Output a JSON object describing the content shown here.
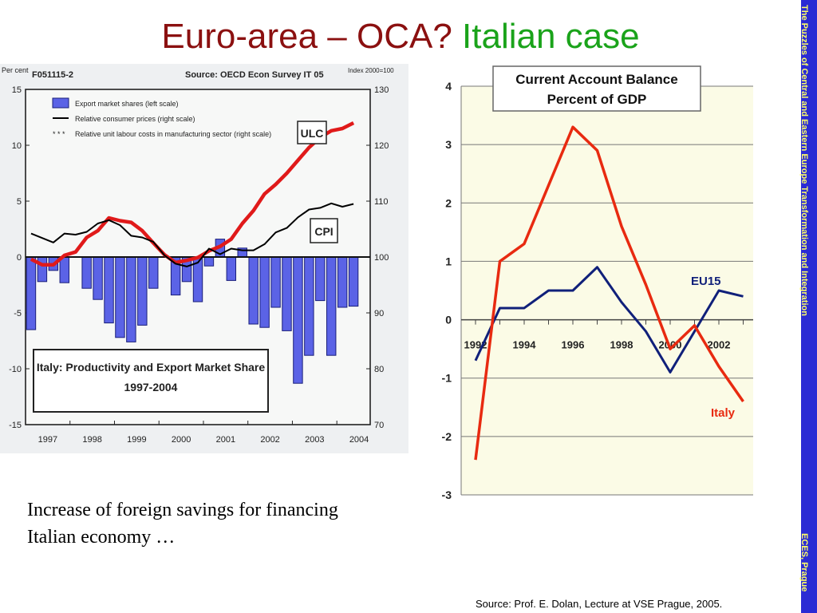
{
  "slide": {
    "title_part1": "Euro-area – OCA?",
    "title_part2": "Italian case",
    "caption": "Increase of foreign savings for financing Italian economy …",
    "source_note": "Source: Prof. E. Dolan, Lecture at VSE Prague, 2005.",
    "side_band_top": "The Puzzles of Central and Eastern Europe Transformation and Integration",
    "side_band_bottom": "ECES, Prague",
    "colors": {
      "title_red": "#8b1010",
      "title_green": "#1aa31a",
      "band_blue": "#2b2bd4",
      "band_text": "#ffff66"
    }
  },
  "chart_data": [
    {
      "type": "bar",
      "code": "F051115-2",
      "source": "Source: OECD Econ Survey IT 05",
      "left_unit": "Per cent",
      "right_unit": "Index 2000=100",
      "years": [
        "1997",
        "1998",
        "1999",
        "2000",
        "2001",
        "2002",
        "2003",
        "2004"
      ],
      "ylim_left": [
        -15,
        15
      ],
      "ylim_right": [
        70,
        130
      ],
      "left_ticks": [
        "15",
        "10",
        "5",
        "0",
        "-5",
        "-10",
        "-15"
      ],
      "right_ticks": [
        "130",
        "120",
        "110",
        "100",
        "90",
        "80",
        "70"
      ],
      "legend": [
        "Export market shares (left scale)",
        "Relative consumer prices (right scale)",
        "Relative unit labour costs in manufacturing sector  (right scale)"
      ],
      "labels": {
        "ulc": "ULC",
        "cpi": "CPI"
      },
      "box_title_line1": "Italy: Productivity and Export Market Share",
      "box_title_line2": "1997-2004",
      "series": [
        {
          "name": "Export market shares (left scale)",
          "kind": "bar",
          "axis": "left",
          "x": [
            1997.0,
            1997.25,
            1997.5,
            1997.75,
            1998.0,
            1998.25,
            1998.5,
            1998.75,
            1999.0,
            1999.25,
            1999.5,
            1999.75,
            2000.0,
            2000.25,
            2000.5,
            2000.75,
            2001.0,
            2001.25,
            2001.5,
            2001.75,
            2002.0,
            2002.25,
            2002.5,
            2002.75,
            2003.0,
            2003.25,
            2003.5,
            2003.75,
            2004.0,
            2004.25
          ],
          "values": [
            -6.5,
            -2.2,
            -1.2,
            -2.3,
            0.0,
            -2.8,
            -3.8,
            -5.9,
            -7.2,
            -7.6,
            -6.1,
            -2.8,
            0.0,
            -3.4,
            -2.2,
            -4.0,
            -0.8,
            1.6,
            -2.1,
            0.8,
            -6.0,
            -6.3,
            -4.5,
            -6.6,
            -11.3,
            -8.8,
            -3.9,
            -8.8,
            -4.5,
            -4.4
          ],
          "color": "#5b63e6"
        },
        {
          "name": "Relative consumer prices (right scale)",
          "kind": "line",
          "axis": "right",
          "x": [
            1997.0,
            1997.25,
            1997.5,
            1997.75,
            1998.0,
            1998.25,
            1998.5,
            1998.75,
            1999.0,
            1999.25,
            1999.5,
            1999.75,
            2000.0,
            2000.25,
            2000.5,
            2000.75,
            2001.0,
            2001.25,
            2001.5,
            2001.75,
            2002.0,
            2002.25,
            2002.5,
            2002.75,
            2003.0,
            2003.25,
            2003.5,
            2003.75,
            2004.0,
            2004.25
          ],
          "values": [
            104.2,
            103.4,
            102.6,
            104.2,
            104.0,
            104.5,
            106.0,
            106.6,
            105.7,
            103.8,
            103.5,
            102.7,
            100.3,
            98.8,
            98.3,
            99.0,
            101.5,
            100.5,
            101.5,
            101.2,
            101.2,
            102.3,
            104.4,
            105.2,
            107.1,
            108.5,
            108.8,
            109.6,
            109.0,
            109.5
          ],
          "color": "#000000"
        },
        {
          "name": "Relative unit labour costs in manufacturing sector  (right scale)",
          "kind": "line",
          "axis": "right",
          "x": [
            1997.0,
            1997.25,
            1997.5,
            1997.75,
            1998.0,
            1998.25,
            1998.5,
            1998.75,
            1999.0,
            1999.25,
            1999.5,
            1999.75,
            2000.0,
            2000.25,
            2000.5,
            2000.75,
            2001.0,
            2001.25,
            2001.5,
            2001.75,
            2002.0,
            2002.25,
            2002.5,
            2002.75,
            2003.0,
            2003.25,
            2003.5,
            2003.75,
            2004.0,
            2004.25
          ],
          "values": [
            99.6,
            98.6,
            98.6,
            100.3,
            100.9,
            103.5,
            104.7,
            107.0,
            106.5,
            106.2,
            104.7,
            102.5,
            100.4,
            99.0,
            99.4,
            99.9,
            101.1,
            101.9,
            103.2,
            106.0,
            108.3,
            111.3,
            113.0,
            115.0,
            117.3,
            119.6,
            121.4,
            122.6,
            123.0,
            124.0
          ],
          "color": "#e01a1a"
        }
      ]
    },
    {
      "type": "line",
      "title_line1": "Current Account Balance",
      "title_line2": "Percent of GDP",
      "x": [
        1992,
        1993,
        1994,
        1995,
        1996,
        1997,
        1998,
        1999,
        2000,
        2001,
        2002,
        2003
      ],
      "x_tick_labels": [
        "1992",
        "1994",
        "1996",
        "1998",
        "2000",
        "2002"
      ],
      "y_ticks": [
        "4",
        "3",
        "2",
        "1",
        "0",
        "-1",
        "-2",
        "-3"
      ],
      "ylim": [
        -3,
        4
      ],
      "series": [
        {
          "name": "EU15",
          "values": [
            -0.7,
            0.2,
            0.2,
            0.5,
            0.5,
            0.9,
            0.3,
            -0.2,
            -0.9,
            -0.2,
            0.5,
            0.4
          ],
          "color": "#10207a"
        },
        {
          "name": "Italy",
          "values": [
            -2.4,
            1.0,
            1.3,
            2.3,
            3.3,
            2.9,
            1.6,
            0.6,
            -0.5,
            -0.1,
            -0.8,
            -1.4
          ],
          "color": "#e82a10"
        }
      ]
    }
  ]
}
